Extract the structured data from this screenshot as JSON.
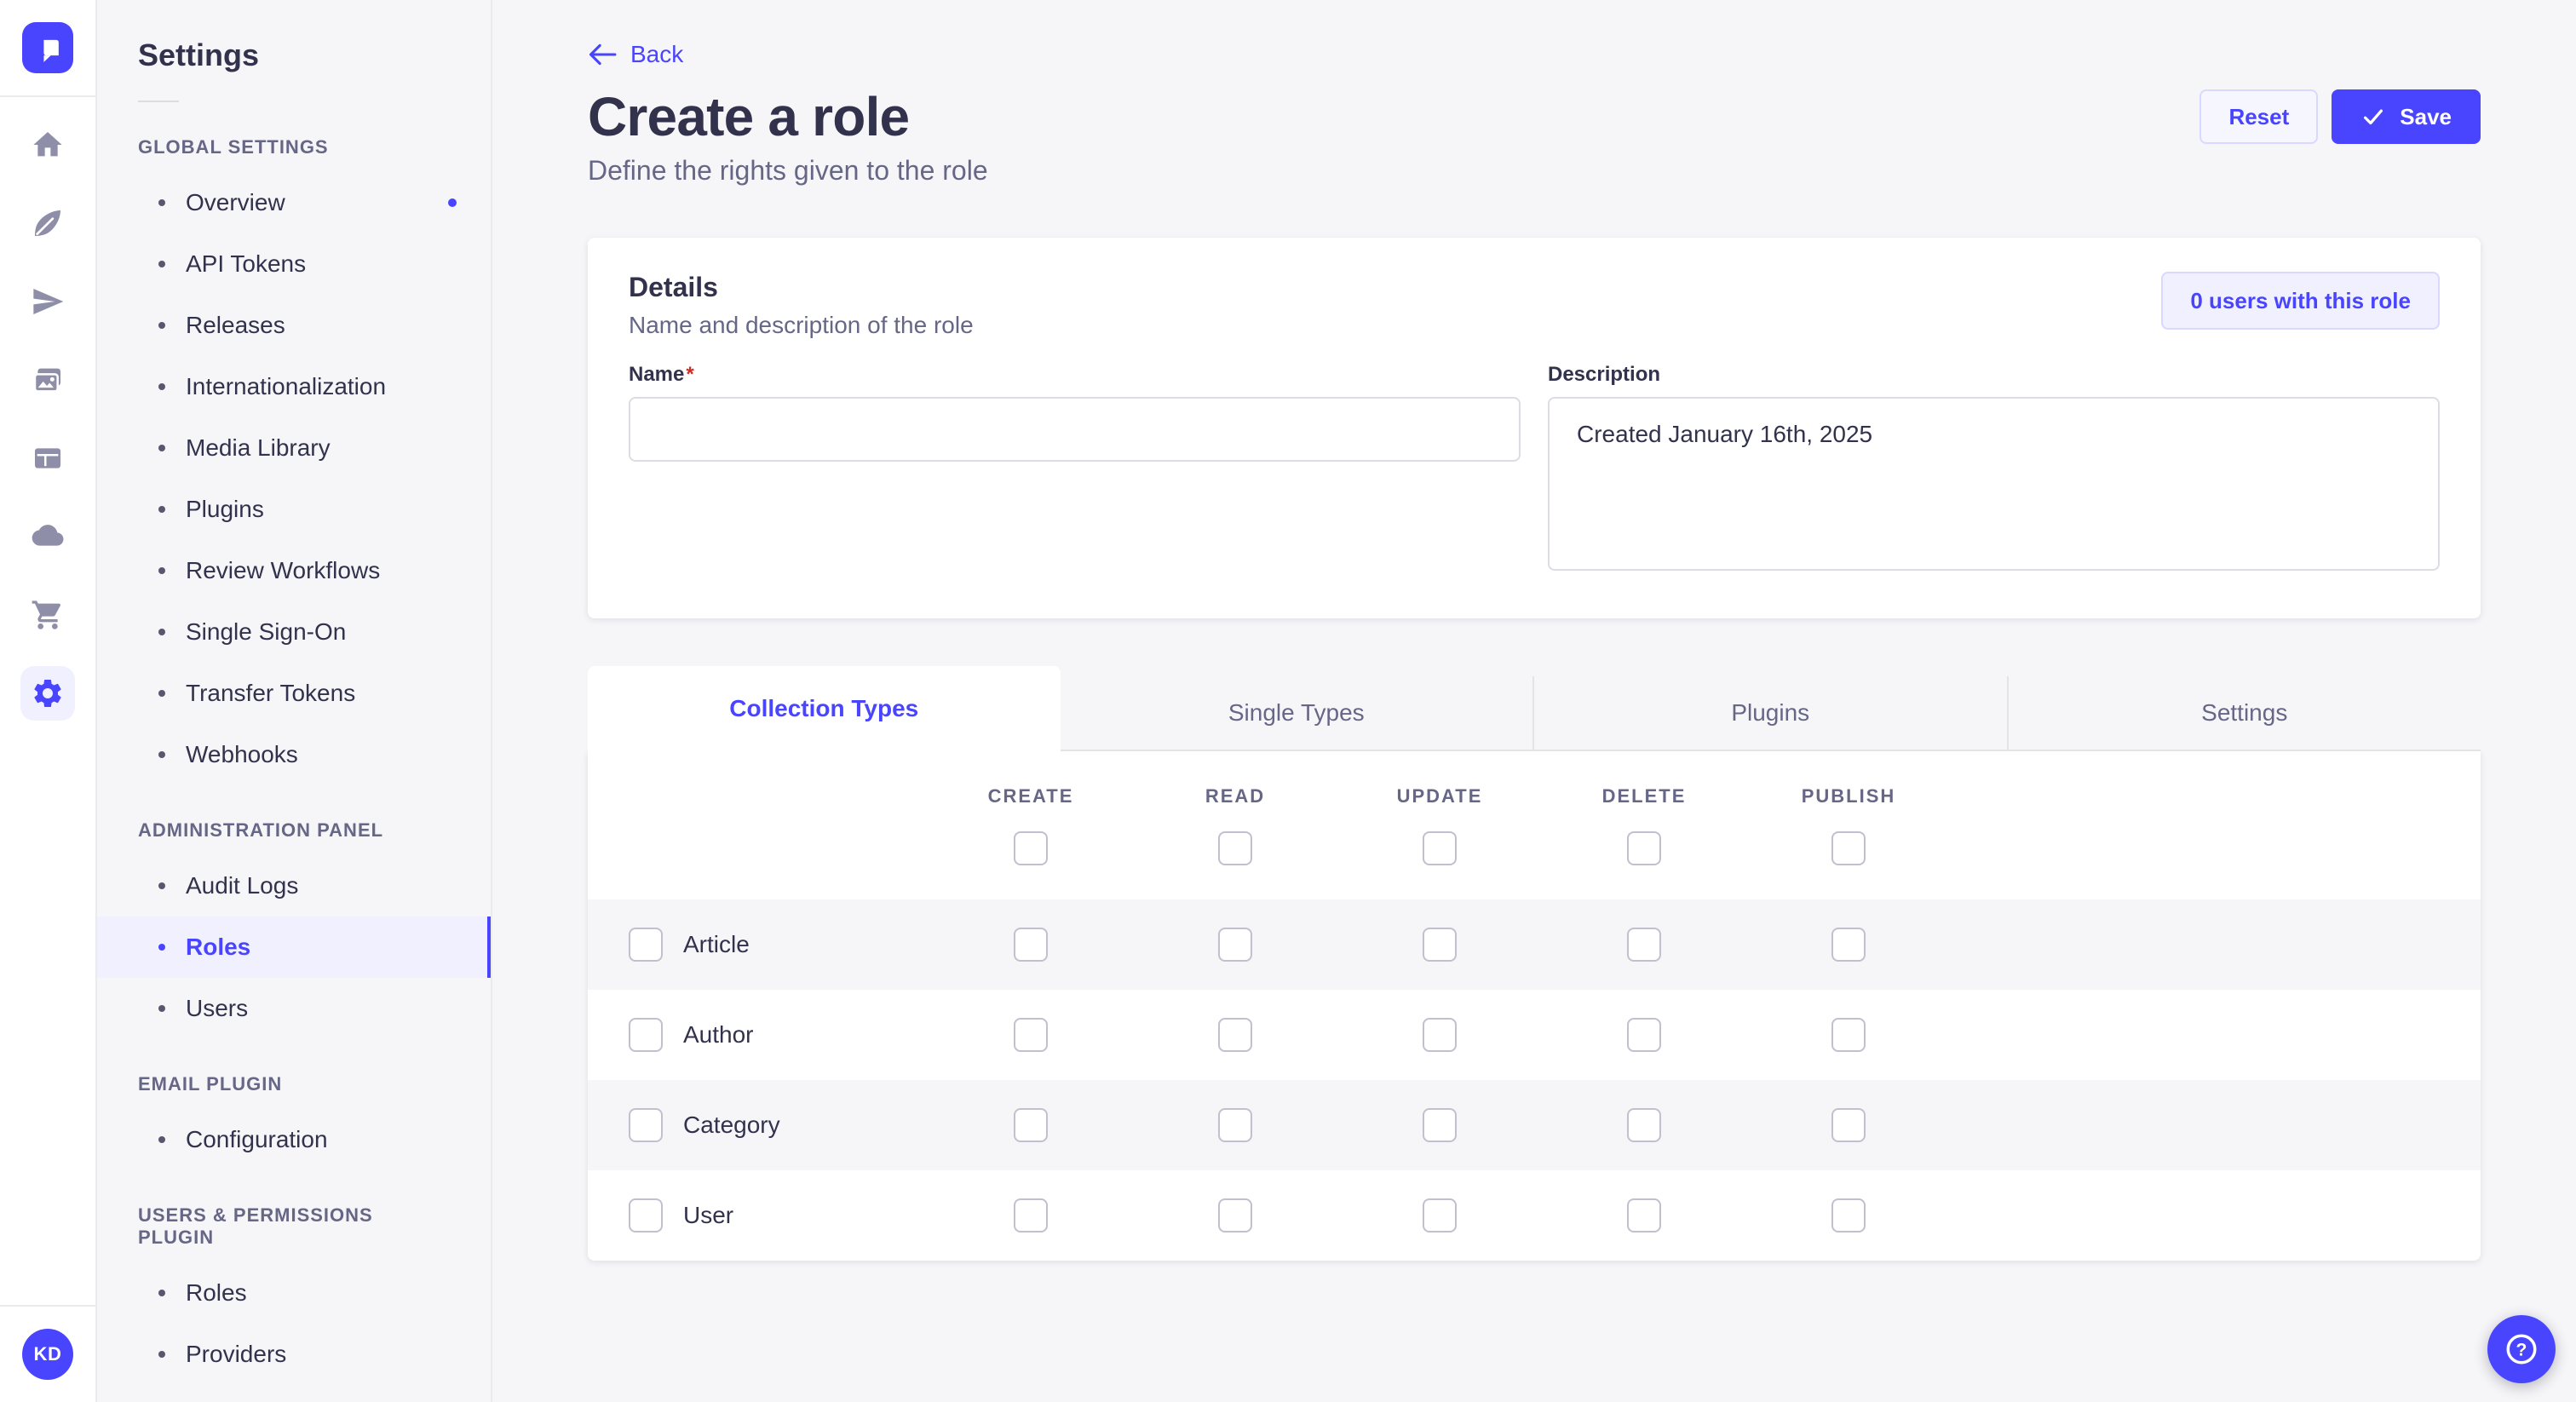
{
  "colors": {
    "primary": "#4945ff",
    "primary_light_bg": "#f0f0ff",
    "page_bg": "#f6f6f9",
    "text_dark": "#32324d",
    "text_gray": "#666687",
    "required_red": "#d02b20"
  },
  "nav_rail": {
    "logo_icon": "strapi-logo-icon",
    "icons": [
      {
        "name": "home-icon"
      },
      {
        "name": "feather-icon"
      },
      {
        "name": "paper-plane-icon"
      },
      {
        "name": "media-images-icon"
      },
      {
        "name": "layout-icon"
      },
      {
        "name": "cloud-icon"
      },
      {
        "name": "shopping-cart-icon"
      },
      {
        "name": "gear-icon",
        "active": true
      }
    ],
    "avatar_initials": "KD"
  },
  "sidebar": {
    "title": "Settings",
    "sections": [
      {
        "header": "GLOBAL SETTINGS",
        "items": [
          {
            "label": "Overview",
            "notification": true
          },
          {
            "label": "API Tokens"
          },
          {
            "label": "Releases"
          },
          {
            "label": "Internationalization"
          },
          {
            "label": "Media Library"
          },
          {
            "label": "Plugins"
          },
          {
            "label": "Review Workflows"
          },
          {
            "label": "Single Sign-On"
          },
          {
            "label": "Transfer Tokens"
          },
          {
            "label": "Webhooks"
          }
        ]
      },
      {
        "header": "ADMINISTRATION PANEL",
        "items": [
          {
            "label": "Audit Logs"
          },
          {
            "label": "Roles",
            "active": true
          },
          {
            "label": "Users"
          }
        ]
      },
      {
        "header": "EMAIL PLUGIN",
        "items": [
          {
            "label": "Configuration"
          }
        ]
      },
      {
        "header": "USERS & PERMISSIONS PLUGIN",
        "items": [
          {
            "label": "Roles"
          },
          {
            "label": "Providers"
          }
        ]
      }
    ]
  },
  "header": {
    "back_label": "Back",
    "title": "Create a role",
    "subtitle": "Define the rights given to the role",
    "reset_label": "Reset",
    "save_label": "Save",
    "save_icon": "check-icon",
    "back_icon": "arrow-left-icon"
  },
  "details_card": {
    "title": "Details",
    "subtitle": "Name and description of the role",
    "users_button_label": "0 users with this role",
    "name_label": "Name",
    "name_required_mark": "*",
    "name_value": "",
    "description_label": "Description",
    "description_value": "Created January 16th, 2025"
  },
  "permissions": {
    "tabs": [
      {
        "label": "Collection Types",
        "active": true
      },
      {
        "label": "Single Types"
      },
      {
        "label": "Plugins"
      },
      {
        "label": "Settings"
      }
    ],
    "columns": [
      "CREATE",
      "READ",
      "UPDATE",
      "DELETE",
      "PUBLISH"
    ],
    "rows": [
      {
        "label": "Article",
        "checked": [
          false,
          false,
          false,
          false,
          false
        ]
      },
      {
        "label": "Author",
        "checked": [
          false,
          false,
          false,
          false,
          false
        ]
      },
      {
        "label": "Category",
        "checked": [
          false,
          false,
          false,
          false,
          false
        ]
      },
      {
        "label": "User",
        "checked": [
          false,
          false,
          false,
          false,
          false
        ]
      }
    ]
  },
  "help": {
    "icon": "question-mark-icon"
  }
}
